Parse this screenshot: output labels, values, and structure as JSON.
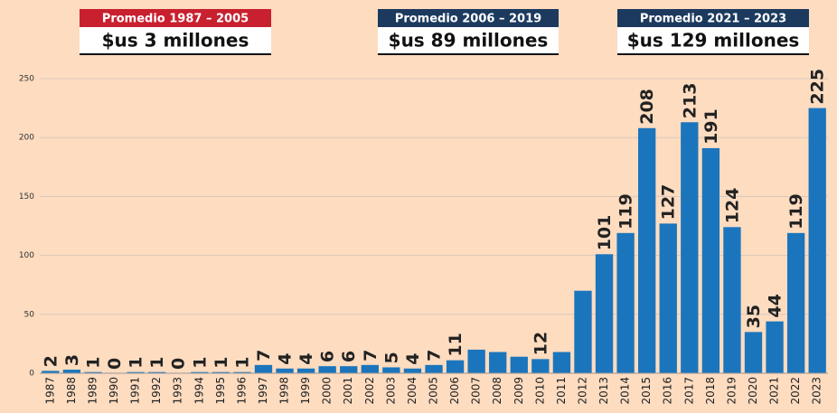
{
  "chart_data": {
    "type": "bar",
    "annotations": [
      {
        "title": "Promedio 1987 – 2005",
        "text": "$us 3 millones",
        "color": "#c8202f"
      },
      {
        "title": "Promedio 2006 – 2019",
        "text": "$us 89 millones",
        "color": "#1c3a5e"
      },
      {
        "title": "Promedio 2021 – 2023",
        "text": "$us 129 millones",
        "color": "#1c3a5e"
      }
    ],
    "categories": [
      "1987",
      "1988",
      "1989",
      "1990",
      "1991",
      "1992",
      "1993",
      "1994",
      "1995",
      "1996",
      "1997",
      "1998",
      "1999",
      "2000",
      "2001",
      "2002",
      "2003",
      "2004",
      "2005",
      "2006",
      "2007",
      "2008",
      "2009",
      "2010",
      "2011",
      "2012",
      "2013",
      "2014",
      "2015",
      "2016",
      "2017",
      "2018",
      "2019",
      "2020",
      "2021",
      "2022",
      "2023"
    ],
    "values": [
      2,
      3,
      1,
      0,
      1,
      1,
      0,
      1,
      1,
      1,
      7,
      4,
      4,
      6,
      6,
      7,
      5,
      4,
      7,
      11,
      20,
      18,
      14,
      12,
      18,
      70,
      101,
      119,
      208,
      127,
      213,
      191,
      124,
      35,
      44,
      119,
      225
    ],
    "value_labels": [
      "2",
      "3",
      "1",
      "0",
      "1",
      "1",
      "0",
      "1",
      "1",
      "1",
      "7",
      "4",
      "4",
      "6",
      "6",
      "7",
      "5",
      "4",
      "7",
      "11",
      null,
      null,
      null,
      "12",
      null,
      null,
      "101",
      "119",
      "208",
      "127",
      "213",
      "191",
      "124",
      "35",
      "44",
      "119",
      "225"
    ],
    "color": "#1b75bc",
    "ylim": [
      0,
      250
    ],
    "yticks": [
      0,
      50,
      100,
      150,
      200,
      250
    ],
    "grid": true
  }
}
